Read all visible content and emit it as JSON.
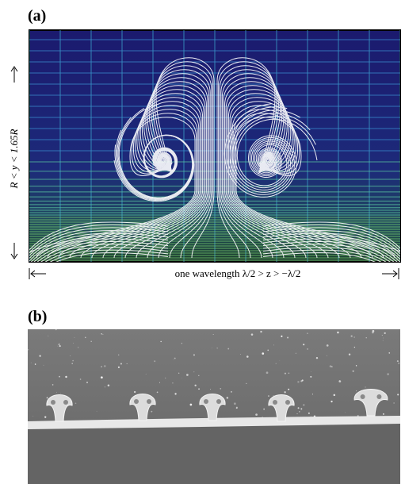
{
  "panel_a": {
    "label": "(a)",
    "y_label": "R < y < 1.65R",
    "x_label": "one wavelength λ/2 > z > −λ/2"
  },
  "panel_b": {
    "label": "(b)"
  }
}
